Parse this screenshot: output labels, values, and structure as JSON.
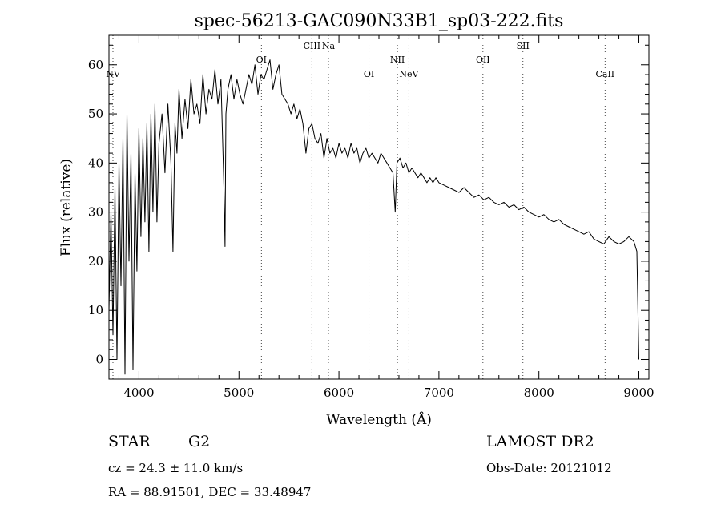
{
  "chart_data": {
    "type": "line",
    "title": "spec-56213-GAC090N33B1_sp03-222.fits",
    "xlabel": "Wavelength (Å)",
    "ylabel": "Flux (relative)",
    "xlim": [
      3700,
      9100
    ],
    "ylim": [
      -4,
      66
    ],
    "xticks": [
      4000,
      5000,
      6000,
      7000,
      8000,
      9000
    ],
    "yticks": [
      0,
      10,
      20,
      30,
      40,
      50,
      60
    ],
    "grid": false,
    "series": [
      {
        "x": [
          3700,
          3720,
          3740,
          3760,
          3780,
          3800,
          3820,
          3840,
          3860,
          3880,
          3900,
          3920,
          3940,
          3960,
          3980,
          4000,
          4020,
          4040,
          4060,
          4080,
          4100,
          4120,
          4140,
          4160,
          4180,
          4200,
          4230,
          4260,
          4290,
          4320,
          4340,
          4360,
          4380,
          4400,
          4430,
          4460,
          4490,
          4520,
          4550,
          4580,
          4610,
          4640,
          4670,
          4700,
          4730,
          4760,
          4790,
          4820,
          4850,
          4861,
          4870,
          4890,
          4920,
          4950,
          4980,
          5010,
          5040,
          5070,
          5100,
          5130,
          5160,
          5190,
          5220,
          5250,
          5280,
          5310,
          5340,
          5370,
          5400,
          5430,
          5460,
          5490,
          5520,
          5550,
          5580,
          5610,
          5640,
          5670,
          5700,
          5730,
          5760,
          5790,
          5820,
          5850,
          5880,
          5910,
          5940,
          5970,
          6000,
          6030,
          6060,
          6090,
          6120,
          6150,
          6180,
          6210,
          6240,
          6270,
          6300,
          6330,
          6360,
          6390,
          6420,
          6450,
          6480,
          6510,
          6540,
          6563,
          6580,
          6610,
          6640,
          6670,
          6700,
          6730,
          6760,
          6790,
          6820,
          6850,
          6880,
          6910,
          6940,
          6970,
          7000,
          7050,
          7100,
          7150,
          7200,
          7250,
          7300,
          7350,
          7400,
          7450,
          7500,
          7550,
          7600,
          7650,
          7700,
          7750,
          7800,
          7850,
          7900,
          7950,
          8000,
          8050,
          8100,
          8150,
          8200,
          8250,
          8300,
          8350,
          8400,
          8450,
          8500,
          8550,
          8600,
          8650,
          8700,
          8750,
          8800,
          8850,
          8900,
          8950,
          8980,
          9000
        ],
        "y": [
          10,
          30,
          5,
          35,
          0,
          40,
          15,
          45,
          -3,
          50,
          20,
          42,
          -2,
          38,
          18,
          47,
          25,
          45,
          28,
          48,
          22,
          50,
          30,
          52,
          28,
          44,
          50,
          38,
          52,
          40,
          22,
          48,
          42,
          55,
          45,
          53,
          47,
          57,
          50,
          52,
          48,
          58,
          50,
          55,
          53,
          59,
          52,
          57,
          35,
          23,
          50,
          55,
          58,
          53,
          57,
          54,
          52,
          55,
          58,
          56,
          60,
          54,
          58,
          57,
          59,
          61,
          55,
          58,
          60,
          54,
          53,
          52,
          50,
          52,
          49,
          51,
          48,
          42,
          47,
          48,
          45,
          44,
          46,
          41,
          45,
          42,
          43,
          41,
          44,
          42,
          43,
          41,
          44,
          42,
          43,
          40,
          42,
          43,
          41,
          42,
          41,
          40,
          42,
          41,
          40,
          39,
          38,
          30,
          40,
          41,
          39,
          40,
          38,
          39,
          38,
          37,
          38,
          37,
          36,
          37,
          36,
          37,
          36,
          35.5,
          35,
          34.5,
          34,
          35,
          34,
          33,
          33.5,
          32.5,
          33,
          32,
          31.5,
          32,
          31,
          31.5,
          30.5,
          31,
          30,
          29.5,
          29,
          29.5,
          28.5,
          28,
          28.5,
          27.5,
          27,
          26.5,
          26,
          25.5,
          26,
          24.5,
          24,
          23.5,
          25,
          24,
          23.5,
          24,
          25,
          24,
          22,
          0
        ]
      }
    ],
    "line_markers": [
      {
        "label": "NV",
        "x": 3740
      },
      {
        "label": "OI",
        "x": 5225
      },
      {
        "label": "CIII",
        "x": 5730
      },
      {
        "label": "Na",
        "x": 5895
      },
      {
        "label": "OI",
        "x": 6300
      },
      {
        "label": "NII",
        "x": 6585
      },
      {
        "label": "NeV",
        "x": 6700
      },
      {
        "label": "OII",
        "x": 7440
      },
      {
        "label": "SII",
        "x": 7840
      },
      {
        "label": "CaII",
        "x": 8662
      }
    ]
  },
  "info": {
    "class_label": "STAR",
    "subclass_label": "G2",
    "survey": "LAMOST DR2",
    "redshift": "cz = 24.3 ± 11.0 km/s",
    "obs_date": "Obs-Date: 20121012",
    "coords": "RA =  88.91501, DEC =  33.48947"
  }
}
